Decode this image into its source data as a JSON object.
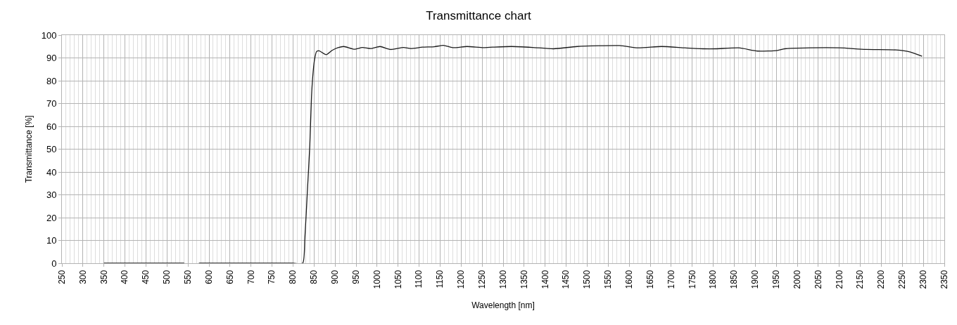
{
  "chart_data": {
    "type": "line",
    "title": "Transmittance chart",
    "xlabel": "Wavelength [nm]",
    "ylabel": "Transmittance [%]",
    "x": [
      350,
      400,
      450,
      500,
      541,
      558,
      576,
      650,
      700,
      750,
      800,
      823,
      828,
      834,
      840,
      844,
      847,
      851,
      856,
      862,
      879,
      893,
      907,
      921,
      946,
      965,
      985,
      1007,
      1032,
      1063,
      1080,
      1108,
      1136,
      1158,
      1180,
      1214,
      1253,
      1275,
      1320,
      1370,
      1420,
      1476,
      1577,
      1621,
      1677,
      1733,
      1778,
      1806,
      1861,
      1906,
      1953,
      1970,
      2029,
      2101,
      2163,
      2235,
      2269,
      2297
    ],
    "series": [
      {
        "color": "#1a1a1a",
        "values": [
          0,
          0,
          0,
          0,
          0,
          null,
          0,
          0,
          0,
          0,
          0,
          0,
          10.6,
          31,
          52,
          73,
          82,
          89,
          92.8,
          93.1,
          91.4,
          93.3,
          94.5,
          95,
          93.8,
          94.6,
          94.1,
          95,
          93.7,
          94.6,
          94.1,
          94.7,
          94.9,
          95.5,
          94.5,
          95,
          94.5,
          94.7,
          95,
          94.6,
          94,
          95,
          95.4,
          94.4,
          95,
          94.4,
          94,
          94,
          94.4,
          93,
          93.3,
          94,
          94.4,
          94.4,
          93.7,
          93.5,
          92.6,
          90.7
        ]
      }
    ],
    "xlim": [
      250,
      2350
    ],
    "ylim": [
      0,
      100
    ],
    "xticks": [
      250,
      300,
      350,
      400,
      450,
      500,
      550,
      600,
      650,
      700,
      750,
      800,
      850,
      900,
      950,
      1000,
      1050,
      1100,
      1150,
      1200,
      1250,
      1300,
      1350,
      1400,
      1450,
      1500,
      1550,
      1600,
      1650,
      1700,
      1750,
      1800,
      1850,
      1900,
      1950,
      2000,
      2050,
      2100,
      2150,
      2200,
      2250,
      2300,
      2350
    ],
    "yticks": [
      0,
      10,
      20,
      30,
      40,
      50,
      60,
      70,
      80,
      90,
      100
    ],
    "grid": true,
    "marker": "none",
    "line_style": "solid"
  }
}
